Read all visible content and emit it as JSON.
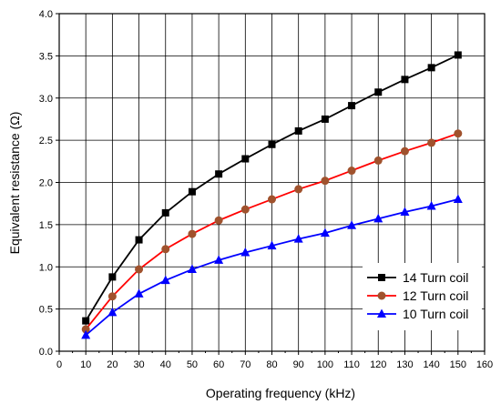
{
  "chart_data": {
    "type": "line",
    "xlabel": "Operating frequency (kHz)",
    "ylabel": "Equivalent resistance (Ω)",
    "xlim": [
      0,
      160
    ],
    "ylim": [
      0,
      4.0
    ],
    "x_ticks": [
      "0",
      "10",
      "20",
      "30",
      "40",
      "50",
      "60",
      "70",
      "80",
      "90",
      "100",
      "110",
      "120",
      "130",
      "140",
      "150",
      "160"
    ],
    "y_ticks": [
      "0.0",
      "0.5",
      "1.0",
      "1.5",
      "2.0",
      "2.5",
      "3.0",
      "3.5",
      "4.0"
    ],
    "grid": true,
    "legend_position": "bottom-right",
    "x": [
      10,
      20,
      30,
      40,
      50,
      60,
      70,
      80,
      90,
      100,
      110,
      120,
      130,
      140,
      150
    ],
    "series": [
      {
        "name": "14 Turn coil",
        "color": "#000000",
        "marker": "square",
        "values": [
          0.36,
          0.88,
          1.32,
          1.64,
          1.89,
          2.1,
          2.28,
          2.45,
          2.61,
          2.75,
          2.91,
          3.07,
          3.22,
          3.36,
          3.51
        ]
      },
      {
        "name": "12 Turn coil",
        "color": "#ff0000",
        "marker_color": "#a0522d",
        "marker": "circle",
        "values": [
          0.26,
          0.65,
          0.97,
          1.21,
          1.39,
          1.55,
          1.68,
          1.8,
          1.92,
          2.02,
          2.14,
          2.26,
          2.37,
          2.47,
          2.58
        ]
      },
      {
        "name": "10 Turn coil",
        "color": "#0000ff",
        "marker": "triangle",
        "values": [
          0.19,
          0.46,
          0.68,
          0.84,
          0.97,
          1.08,
          1.17,
          1.25,
          1.33,
          1.4,
          1.49,
          1.57,
          1.65,
          1.72,
          1.8
        ]
      }
    ]
  }
}
